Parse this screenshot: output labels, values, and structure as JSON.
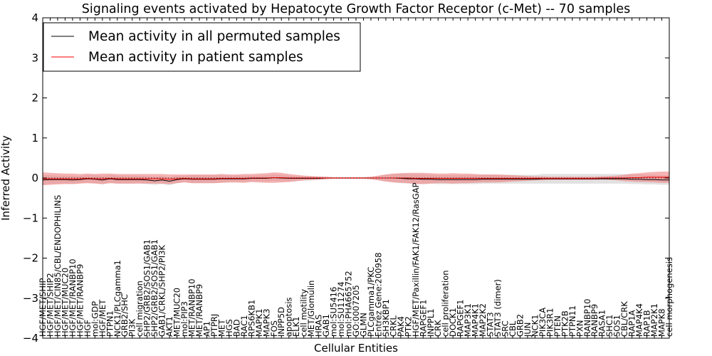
{
  "chart_data": {
    "type": "line",
    "title": "Signaling events activated by Hepatocyte Growth Factor Receptor (c-Met) -- 70 samples",
    "xlabel": "Cellular Entities",
    "ylabel": "Inferred Activity",
    "ylim": [
      -4,
      4
    ],
    "yticks": [
      -4,
      -3,
      -2,
      -1,
      0,
      1,
      2,
      3,
      4
    ],
    "grid": false,
    "legend_position": "top-left",
    "categories": [
      "HGF/MET/SHIP",
      "HGF/MET/SHIP2",
      "HGF/MET/CIN85/CBL/ENDOPHILINS",
      "HGF/MET/MUC20",
      "HGF/MET/RANBP10",
      "HGF/MET/RANBP9",
      "HGF",
      "mol:GDP",
      "HGF/MET",
      "PTPN1",
      "NCK1/PLCgamma1",
      "GRB2/SHC",
      "PI3K",
      "cell migration",
      "SHP2/GRB2/SOS1/GAB1",
      "SHP2/GRB2/SOS1/GAB1",
      "GAB1/CRKL/SHP2/PI3K",
      "AKT1",
      "MET/MUC20",
      "mol:PIP3",
      "MET/RANBP10",
      "MET/RANBP9",
      "AP1",
      "PTPRJ",
      "MET",
      "HGS",
      "BAD",
      "RAC1",
      "RPS6KB1",
      "MAPK1",
      "MAPK3",
      "FOS",
      "INPP5D",
      "apoptosis",
      "ELK1",
      "cell motility",
      "MET/Glomulin",
      "HRAS",
      "GAB1",
      "mol:SU5416",
      "mol:SU11274",
      "mol:PHA665752",
      "GO:0007205",
      "GLMN",
      "PLCgamma1/PKC",
      "Entrez Gene:200958",
      "SH3KBP1",
      "CRKL",
      "PAK4",
      "PTK2",
      "HGF/MET/Paxillin/FAK1/FAK12/RasGAP",
      "RAPGEF1",
      "INPPL1",
      "CRK",
      "cell proliferation",
      "DOCK1",
      "RAPGEF1",
      "MAP3K1",
      "MAP4K1",
      "MAP2K2",
      "STAT3",
      "STAT3 (dimer)",
      "SRC",
      "CBL",
      "GRB2",
      "JUN",
      "NCK1",
      "PIK3CA",
      "PIK3R1",
      "PTEN",
      "PTK2B",
      "PTPN11",
      "PXN",
      "RANBP10",
      "RANBP9",
      "RASA1",
      "SHC1",
      "SOS1",
      "CBL/CRK",
      "RAP1A",
      "MAP4K4",
      "RAP1B",
      "MAP2K1",
      "MAPK8",
      "cell morphogenesis"
    ],
    "series": [
      {
        "name": "Mean activity in all permuted samples",
        "color": "#000000",
        "values": [
          -0.05,
          -0.04,
          -0.04,
          -0.04,
          -0.05,
          -0.04,
          -0.02,
          -0.03,
          -0.05,
          -0.02,
          -0.04,
          -0.04,
          -0.04,
          -0.04,
          -0.05,
          -0.07,
          -0.05,
          -0.08,
          -0.04,
          -0.02,
          -0.03,
          -0.03,
          -0.03,
          -0.03,
          -0.02,
          -0.02,
          -0.02,
          -0.02,
          -0.01,
          -0.01,
          -0.01,
          0.01,
          0.0,
          -0.01,
          -0.01,
          -0.01,
          -0.01,
          -0.01,
          0.0,
          0.0,
          0.0,
          0.0,
          0.0,
          0.0,
          0.0,
          0.0,
          0.0,
          0.0,
          -0.01,
          -0.02,
          -0.02,
          -0.03,
          -0.03,
          -0.04,
          -0.04,
          -0.04,
          -0.04,
          -0.04,
          -0.04,
          -0.03,
          -0.03,
          -0.03,
          -0.03,
          -0.03,
          -0.03,
          -0.03,
          -0.03,
          -0.02,
          -0.02,
          -0.02,
          -0.02,
          -0.02,
          -0.02,
          -0.02,
          -0.02,
          -0.02,
          -0.02,
          -0.02,
          -0.02,
          -0.03,
          -0.03,
          -0.04,
          -0.04,
          -0.05,
          -0.05
        ],
        "band": [
          0.12,
          0.11,
          0.1,
          0.1,
          0.1,
          0.09,
          0.1,
          0.1,
          0.11,
          0.1,
          0.1,
          0.1,
          0.1,
          0.09,
          0.1,
          0.1,
          0.1,
          0.1,
          0.09,
          0.07,
          0.1,
          0.1,
          0.1,
          0.1,
          0.09,
          0.08,
          0.08,
          0.08,
          0.07,
          0.07,
          0.08,
          0.08,
          0.08,
          0.07,
          0.06,
          0.05,
          0.05,
          0.04,
          0.03,
          0.02,
          0.02,
          0.02,
          0.02,
          0.02,
          0.03,
          0.05,
          0.08,
          0.1,
          0.12,
          0.12,
          0.12,
          0.12,
          0.11,
          0.11,
          0.11,
          0.11,
          0.11,
          0.11,
          0.11,
          0.11,
          0.11,
          0.11,
          0.11,
          0.11,
          0.11,
          0.11,
          0.11,
          0.12,
          0.12,
          0.12,
          0.12,
          0.12,
          0.12,
          0.12,
          0.12,
          0.12,
          0.12,
          0.12,
          0.12,
          0.12,
          0.12,
          0.12,
          0.12,
          0.12,
          0.12
        ]
      },
      {
        "name": "Mean activity in patient samples",
        "color": "#ff0000",
        "values": [
          -0.02,
          -0.02,
          -0.02,
          -0.02,
          -0.02,
          -0.02,
          -0.01,
          -0.02,
          -0.02,
          -0.01,
          -0.02,
          -0.02,
          -0.02,
          -0.02,
          -0.02,
          -0.02,
          -0.02,
          -0.03,
          -0.02,
          -0.01,
          -0.02,
          -0.02,
          -0.02,
          -0.02,
          -0.01,
          -0.01,
          -0.01,
          -0.01,
          0.0,
          0.0,
          0.0,
          0.01,
          0.01,
          0.0,
          0.0,
          0.0,
          0.0,
          0.0,
          0.0,
          0.0,
          0.0,
          0.0,
          0.0,
          0.0,
          0.0,
          0.0,
          0.0,
          0.0,
          0.0,
          0.0,
          -0.01,
          -0.01,
          -0.01,
          -0.01,
          -0.01,
          -0.01,
          -0.01,
          -0.01,
          -0.01,
          -0.01,
          -0.01,
          -0.01,
          -0.01,
          -0.01,
          -0.01,
          -0.01,
          -0.01,
          -0.01,
          -0.01,
          -0.01,
          -0.01,
          -0.01,
          -0.01,
          -0.01,
          -0.01,
          0.0,
          0.0,
          0.0,
          0.0,
          0.01,
          0.01,
          0.02,
          0.02,
          0.02,
          0.02
        ],
        "band": [
          0.16,
          0.15,
          0.14,
          0.13,
          0.13,
          0.12,
          0.12,
          0.12,
          0.13,
          0.12,
          0.12,
          0.12,
          0.12,
          0.12,
          0.12,
          0.12,
          0.12,
          0.12,
          0.11,
          0.1,
          0.11,
          0.11,
          0.11,
          0.11,
          0.11,
          0.1,
          0.1,
          0.11,
          0.1,
          0.11,
          0.12,
          0.13,
          0.12,
          0.1,
          0.08,
          0.06,
          0.05,
          0.04,
          0.03,
          0.02,
          0.02,
          0.02,
          0.02,
          0.02,
          0.03,
          0.06,
          0.09,
          0.11,
          0.12,
          0.13,
          0.14,
          0.14,
          0.13,
          0.12,
          0.12,
          0.13,
          0.12,
          0.12,
          0.11,
          0.1,
          0.1,
          0.1,
          0.09,
          0.08,
          0.07,
          0.06,
          0.05,
          0.05,
          0.04,
          0.04,
          0.04,
          0.04,
          0.04,
          0.04,
          0.04,
          0.04,
          0.05,
          0.06,
          0.08,
          0.1,
          0.11,
          0.12,
          0.13,
          0.14,
          0.14
        ]
      }
    ]
  },
  "colors": {
    "permuted_line": "#000000",
    "permuted_band": "#c8c8c8",
    "patient_line": "#ff0000",
    "patient_band": "#f08080"
  }
}
